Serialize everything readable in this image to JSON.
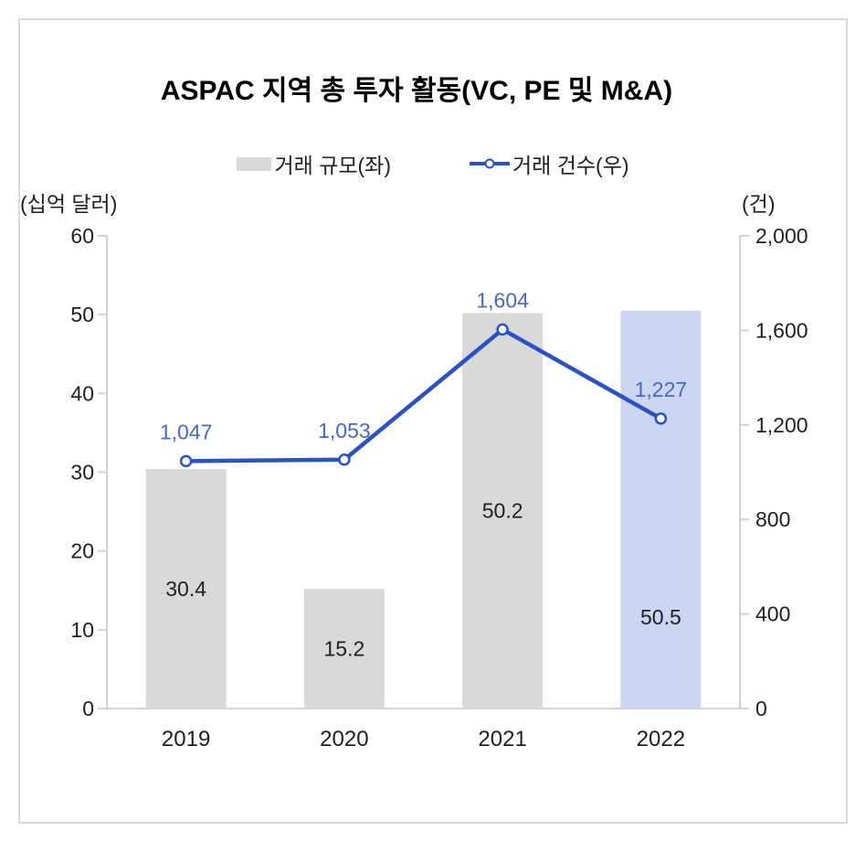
{
  "title": "ASPAC 지역 총 투자 활동(VC, PE 및 M&A)",
  "legend": {
    "items": [
      {
        "label": "거래 규모(좌)",
        "swatch": "gray-bar-swatch"
      },
      {
        "label": "거래 건수(우)",
        "swatch": "blue-line-marker"
      }
    ],
    "position": "top-center"
  },
  "units": {
    "left": "(십억 달러)",
    "right": "(건)"
  },
  "colors": {
    "bar_default": "#d9d9d9",
    "bar_highlight": "#ccd6f3",
    "line": "#2b51c6",
    "line_label": "#4668c8",
    "axis_line": "#d2d2d2",
    "text": "#1f1f1f",
    "title_text": "#000000",
    "border": "#d9d9d9",
    "background": "#ffffff"
  },
  "chart_data": {
    "type": "bar+line-combo",
    "categories": [
      "2019",
      "2020",
      "2021",
      "2022"
    ],
    "series": [
      {
        "name": "거래 규모(좌)",
        "type": "bar",
        "axis": "left",
        "values": [
          30.4,
          15.2,
          50.2,
          50.5
        ],
        "value_labels": [
          "30.4",
          "15.2",
          "50.2",
          "50.5"
        ],
        "colors": [
          "#d9d9d9",
          "#d9d9d9",
          "#d9d9d9",
          "#ccd6f3"
        ]
      },
      {
        "name": "거래 건수(우)",
        "type": "line",
        "axis": "right",
        "values": [
          1047,
          1053,
          1604,
          1227
        ],
        "value_labels": [
          "1,047",
          "1,053",
          "1,604",
          "1,227"
        ],
        "color": "#2b51c6",
        "marker": "open-circle"
      }
    ],
    "left_axis": {
      "unit": "(십억 달러)",
      "min": 0,
      "max": 60,
      "step": 10,
      "tick_labels": [
        "0",
        "10",
        "20",
        "30",
        "40",
        "50",
        "60"
      ]
    },
    "right_axis": {
      "unit": "(건)",
      "min": 0,
      "max": 2000,
      "step": 400,
      "tick_labels": [
        "0",
        "400",
        "800",
        "1,200",
        "1,600",
        "2,000"
      ]
    },
    "grid": false,
    "legend_position": "top",
    "layout_hints": {
      "bar_label_y_override": {
        "3": 675
      }
    }
  }
}
